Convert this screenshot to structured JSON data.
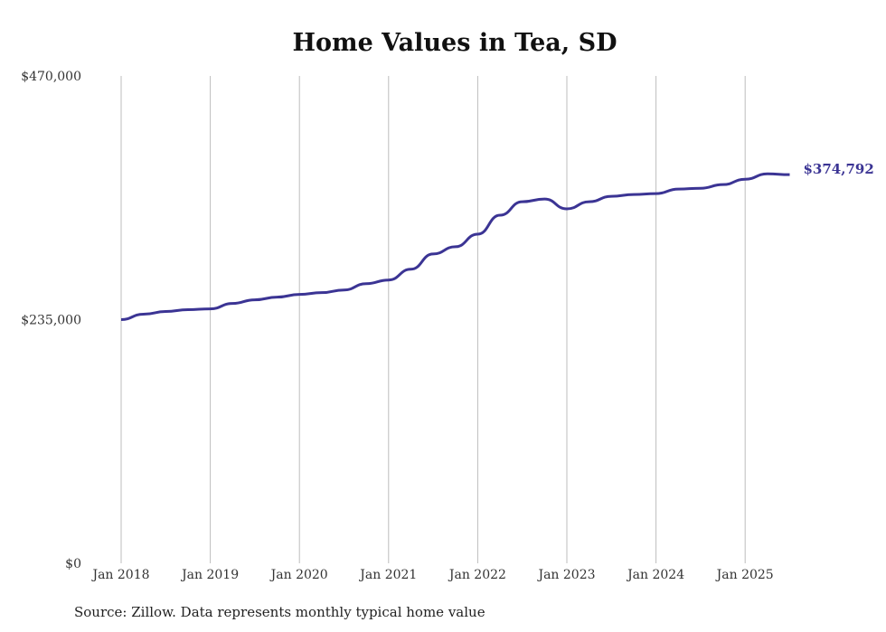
{
  "chart_data": {
    "type": "line",
    "title": "Home Values in Tea, SD",
    "xlabel": "",
    "ylabel": "",
    "ylim": [
      0,
      470000
    ],
    "y_ticks": [
      0,
      235000,
      470000
    ],
    "y_tick_labels": [
      "$0",
      "$235,000",
      "$470,000"
    ],
    "x_tick_labels": [
      "Jan 2018",
      "Jan 2019",
      "Jan 2020",
      "Jan 2021",
      "Jan 2022",
      "Jan 2023",
      "Jan 2024",
      "Jan 2025"
    ],
    "grid": "vertical",
    "series": [
      {
        "name": "Typical home value",
        "color": "#3b3494",
        "x": [
          "2018-01",
          "2018-04",
          "2018-07",
          "2018-10",
          "2019-01",
          "2019-04",
          "2019-07",
          "2019-10",
          "2020-01",
          "2020-04",
          "2020-07",
          "2020-10",
          "2021-01",
          "2021-04",
          "2021-07",
          "2021-10",
          "2022-01",
          "2022-04",
          "2022-07",
          "2022-10",
          "2023-01",
          "2023-04",
          "2023-07",
          "2023-10",
          "2024-01",
          "2024-04",
          "2024-07",
          "2024-10",
          "2025-01",
          "2025-04",
          "2025-07"
        ],
        "values": [
          235000,
          240200,
          242800,
          244600,
          245400,
          250600,
          254100,
          256700,
          259300,
          261000,
          263600,
          269700,
          273200,
          283600,
          298300,
          305300,
          317400,
          335700,
          348700,
          351300,
          341800,
          348700,
          353900,
          355700,
          356500,
          360900,
          361700,
          365200,
          370400,
          375600,
          374792
        ]
      }
    ],
    "end_label": "$374,792"
  },
  "source": "Source: Zillow. Data represents monthly typical home value"
}
